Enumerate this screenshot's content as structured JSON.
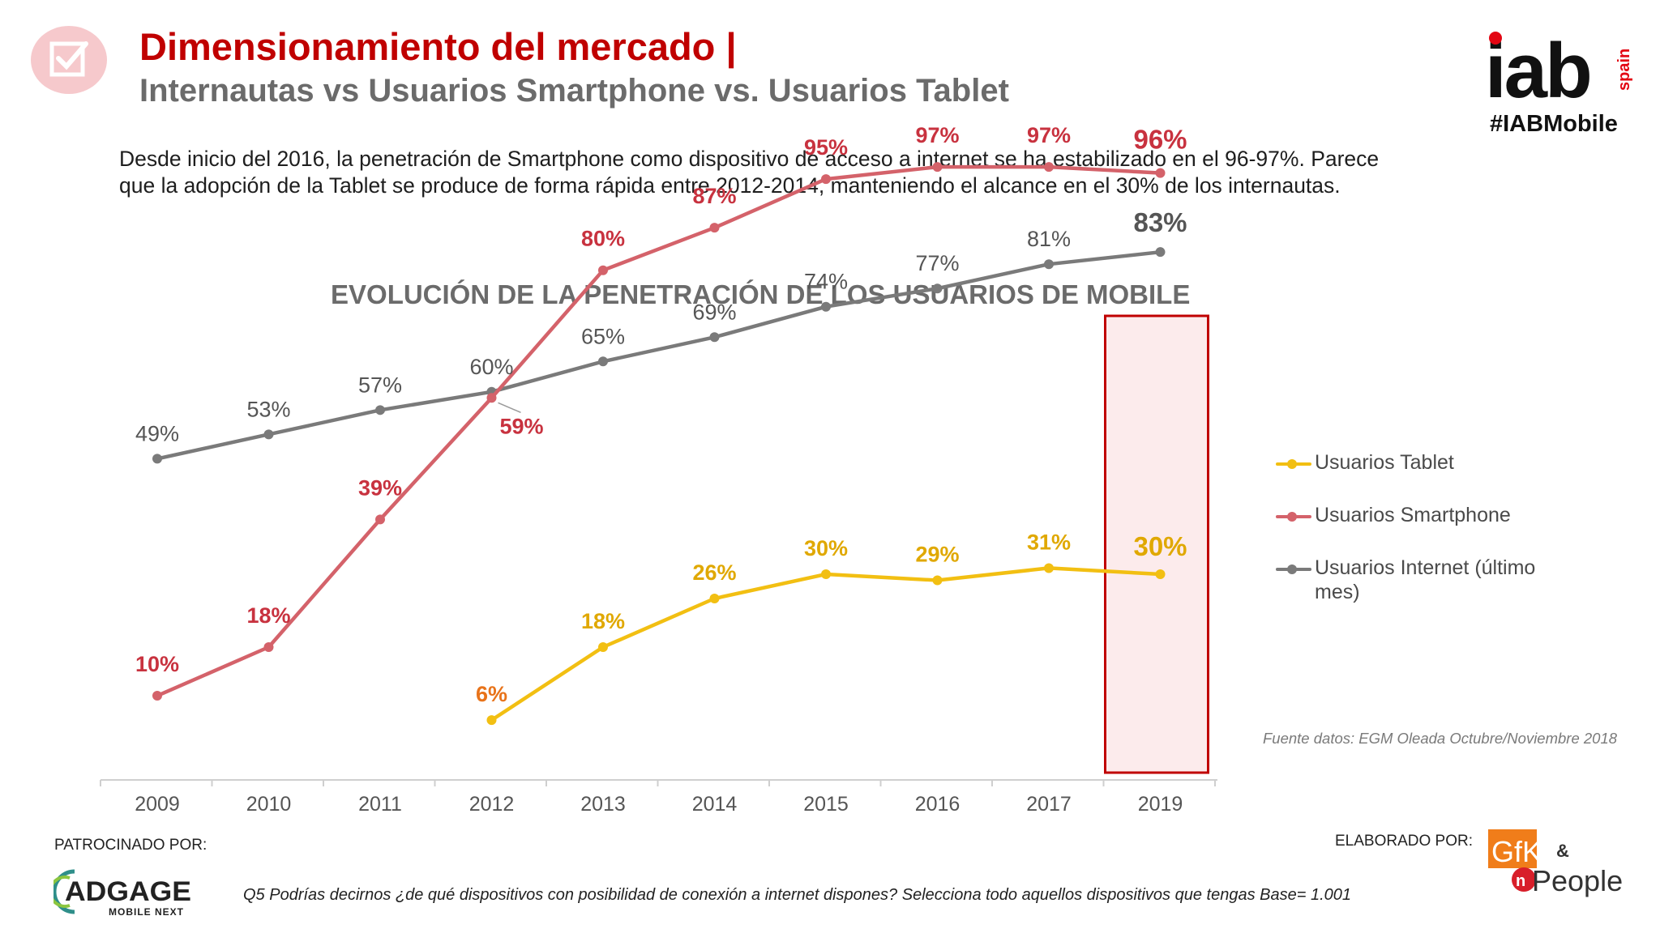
{
  "header": {
    "title": "Dimensionamiento del mercado |",
    "subtitle": "Internautas vs Usuarios Smartphone vs. Usuarios Tablet",
    "icon": "checkbox-icon"
  },
  "brand": {
    "logo_text": "iab",
    "logo_side_text": "spain",
    "hashtag": "#IABMobile"
  },
  "intro": {
    "text": "Desde inicio del 2016, la penetración de Smartphone como dispositivo de acceso a internet se ha estabilizado en el 96-97%. Parece que la adopción de la Tablet se produce de forma rápida entre 2012-2014, manteniendo el alcance en el 30% de los internautas."
  },
  "chart_data": {
    "type": "line",
    "title": "EVOLUCIÓN DE LA PENETRACIÓN DE LOS USUARIOS DE MOBILE",
    "categories": [
      "2009",
      "2010",
      "2011",
      "2012",
      "2013",
      "2014",
      "2015",
      "2016",
      "2017",
      "2019"
    ],
    "ylim": [
      0,
      100
    ],
    "grid": false,
    "legend_position": "right",
    "highlighted_category": "2019",
    "series": [
      {
        "name": "Usuarios Tablet",
        "color": "#f2bf12",
        "label_color": "#e0a800",
        "values": [
          null,
          null,
          null,
          6,
          18,
          26,
          30,
          29,
          31,
          30
        ],
        "labels": [
          "",
          "",
          "",
          "6%",
          "18%",
          "26%",
          "30%",
          "29%",
          "31%",
          "30%"
        ]
      },
      {
        "name": "Usuarios Smartphone",
        "color": "#d4626a",
        "label_color": "#c8323f",
        "values": [
          10,
          18,
          39,
          59,
          80,
          87,
          95,
          97,
          97,
          96
        ],
        "labels": [
          "10%",
          "18%",
          "39%",
          "59%",
          "80%",
          "87%",
          "95%",
          "97%",
          "97%",
          "96%"
        ]
      },
      {
        "name": "Usuarios Internet (último mes)",
        "color": "#7a7a7a",
        "label_color": "#555555",
        "values": [
          49,
          53,
          57,
          60,
          65,
          69,
          74,
          77,
          81,
          83
        ],
        "labels": [
          "49%",
          "53%",
          "57%",
          "60%",
          "65%",
          "69%",
          "74%",
          "77%",
          "81%",
          "83%"
        ]
      }
    ],
    "source": "Fuente datos: EGM Oleada Octubre/Noviembre 2018"
  },
  "footer": {
    "sponsor_label": "PATROCINADO POR:",
    "sponsor_logo_text": "ADGAGE",
    "sponsor_logo_sub": "MOBILE NEXT",
    "footnote": "Q5 Podrías decirnos ¿de qué dispositivos con posibilidad de conexión a internet dispones? Selecciona todo aquellos dispositivos que tengas  Base= 1.001",
    "made_label": "ELABORADO POR:",
    "made_logo_text": "GfK",
    "made_logo_amp": "&",
    "made_logo_second": "People"
  }
}
